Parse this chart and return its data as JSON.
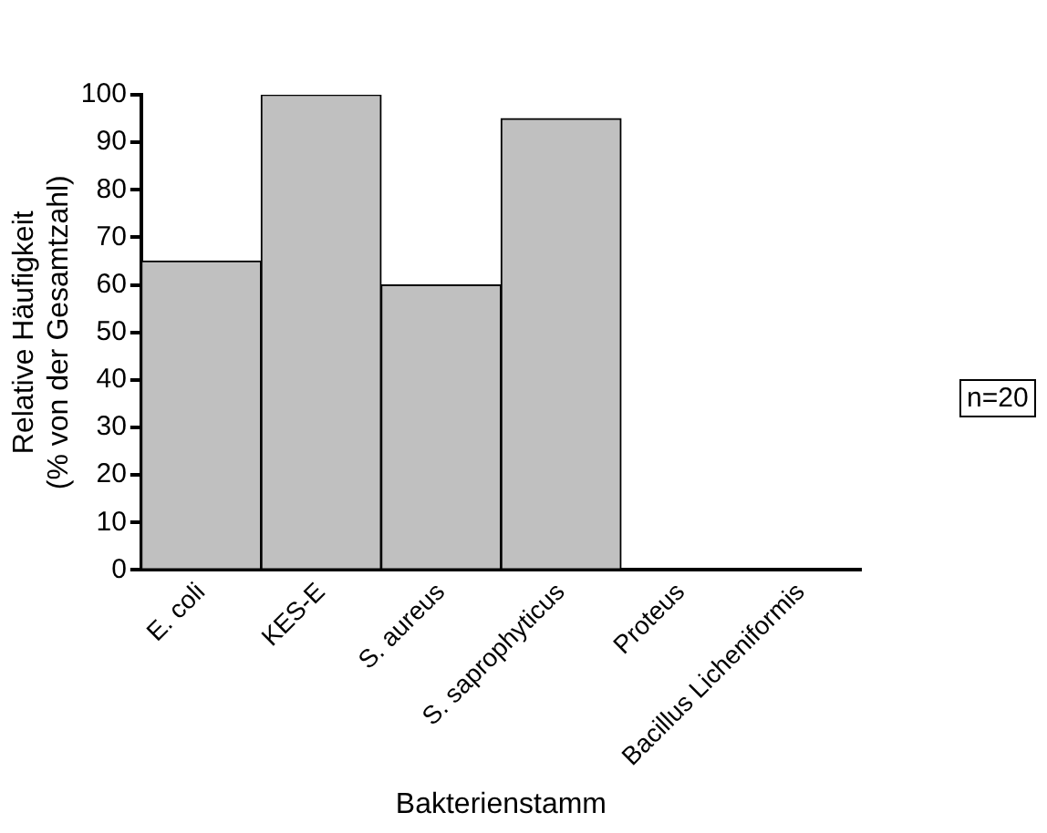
{
  "chart_data": {
    "type": "bar",
    "xlabel": "Bakterienstamm",
    "ylabel": "Relative Häufigkeit\n(% von der Gesamtzahl)",
    "categories": [
      "E. coli",
      "KES-E",
      "S. aureus",
      "S. saprophyticus",
      "Proteus",
      "Bacillus Licheniformis"
    ],
    "values": [
      65,
      100,
      60,
      95,
      0,
      0
    ],
    "color": "#c0c0c0",
    "ylim": [
      0,
      100
    ],
    "yticks": [
      0,
      10,
      20,
      30,
      40,
      50,
      60,
      70,
      80,
      90,
      100
    ],
    "grid": false,
    "legend": false,
    "annotations": [
      "n=20"
    ]
  }
}
